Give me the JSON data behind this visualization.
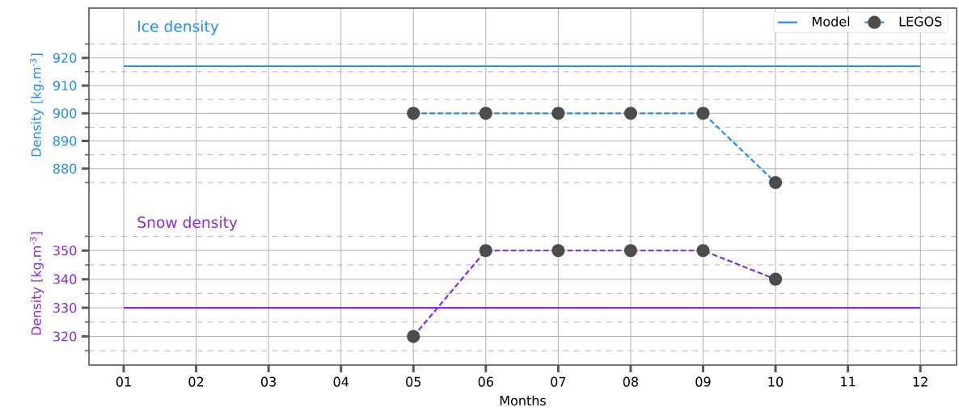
{
  "chart_data": [
    {
      "type": "line",
      "title": "Ice density",
      "ylabel": "Density [kg.m$^{-3}$]",
      "categories": [
        "01",
        "02",
        "03",
        "04",
        "05",
        "06",
        "07",
        "08",
        "09",
        "10",
        "11",
        "12"
      ],
      "ylim": [
        868,
        938
      ],
      "yticks": [
        880,
        890,
        900,
        910,
        920
      ],
      "grid": true,
      "legend": "top right",
      "tick_labels": "y",
      "series": [
        {
          "name": "Model",
          "color": "#1e90ff",
          "line_style": "solid",
          "marker": "none",
          "values": [
            917,
            917,
            917,
            917,
            917,
            917,
            917,
            917,
            917,
            917,
            917,
            917
          ]
        },
        {
          "name": "LEGOS",
          "color": "#1e90ff",
          "line_style": "dashed",
          "marker": "circle",
          "values": [
            null,
            null,
            null,
            null,
            900,
            900,
            900,
            900,
            900,
            875,
            null,
            null
          ]
        }
      ]
    },
    {
      "type": "line",
      "title": "Snow density",
      "ylabel": "Density [kg.m$^{-3}$]",
      "xlabel": "Months",
      "categories": [
        "01",
        "02",
        "03",
        "04",
        "05",
        "06",
        "07",
        "08",
        "09",
        "10",
        "11",
        "12"
      ],
      "ylim": [
        310,
        367
      ],
      "yticks": [
        320,
        330,
        340,
        350
      ],
      "grid": true,
      "series": [
        {
          "color": "#8a2be2",
          "line_style": "solid",
          "marker": "none",
          "values": [
            330,
            330,
            330,
            330,
            330,
            330,
            330,
            330,
            330,
            330,
            330,
            330
          ]
        },
        {
          "color": "#8a2be2",
          "line_style": "dashed",
          "marker": "circle",
          "values": [
            null,
            null,
            null,
            null,
            320,
            350,
            350,
            350,
            350,
            340,
            null,
            null
          ]
        }
      ]
    }
  ]
}
